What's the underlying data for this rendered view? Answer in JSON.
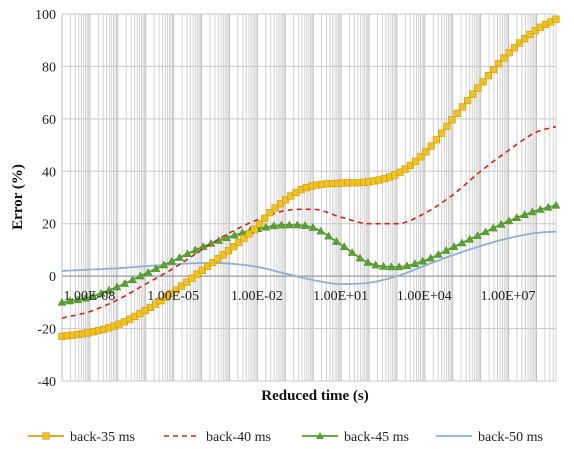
{
  "chart_data": {
    "type": "line",
    "xscale": "log",
    "xlim": [
      1e-09,
      500000000.0
    ],
    "ylim": [
      -40,
      100
    ],
    "xlabel": "Reduced time (s)",
    "ylabel": "Error (%)",
    "x_tick_labels": [
      "1.00E-08",
      "1.00E-05",
      "1.00E-02",
      "1.00E+01",
      "1.00E+04",
      "1.00E+07"
    ],
    "x_tick_values": [
      1e-08,
      1e-05,
      0.01,
      10.0,
      10000.0,
      10000000.0
    ],
    "y_ticks": [
      -40,
      -20,
      0,
      20,
      40,
      60,
      80,
      100
    ],
    "grid": {
      "x_major_and_minor": true,
      "y_major": true
    },
    "legend_position": "bottom",
    "series": [
      {
        "name": "back-35 ms",
        "color": "#d4a017",
        "line_style": "solid",
        "marker": "square",
        "points": [
          [
            1e-09,
            -23.0
          ],
          [
            1e-08,
            -21.5
          ],
          [
            1e-07,
            -18.5
          ],
          [
            1e-06,
            -13.0
          ],
          [
            1e-05,
            -6.0
          ],
          [
            0.0001,
            2.0
          ],
          [
            0.001,
            10.0
          ],
          [
            0.01,
            19.0
          ],
          [
            0.03,
            24.5
          ],
          [
            0.1,
            29.0
          ],
          [
            0.3,
            32.5
          ],
          [
            1,
            34.5
          ],
          [
            10.0,
            35.5
          ],
          [
            100.0,
            36.0
          ],
          [
            1000.0,
            39.0
          ],
          [
            10000.0,
            47.0
          ],
          [
            100000.0,
            60.0
          ],
          [
            1000000.0,
            73.0
          ],
          [
            10000000.0,
            85.0
          ],
          [
            100000000.0,
            94.0
          ],
          [
            500000000.0,
            98.0
          ]
        ]
      },
      {
        "name": "back-40 ms",
        "color": "#d62020",
        "line_style": "dashed",
        "marker": "none",
        "points": [
          [
            1e-09,
            -16.0
          ],
          [
            1e-08,
            -13.5
          ],
          [
            1e-07,
            -9.0
          ],
          [
            1e-06,
            -3.0
          ],
          [
            1e-05,
            3.0
          ],
          [
            0.0001,
            10.0
          ],
          [
            0.001,
            16.5
          ],
          [
            0.01,
            21.5
          ],
          [
            0.1,
            25.0
          ],
          [
            1,
            25.5
          ],
          [
            10.0,
            22.5
          ],
          [
            100.0,
            20.0
          ],
          [
            1000.0,
            20.0
          ],
          [
            10000.0,
            24.0
          ],
          [
            100000.0,
            31.0
          ],
          [
            1000000.0,
            40.0
          ],
          [
            10000000.0,
            48.0
          ],
          [
            100000000.0,
            55.0
          ],
          [
            500000000.0,
            57.0
          ]
        ]
      },
      {
        "name": "back-45 ms",
        "color": "#5aa132",
        "line_style": "solid",
        "marker": "triangle",
        "points": [
          [
            1e-09,
            -10.0
          ],
          [
            1e-08,
            -8.0
          ],
          [
            1e-07,
            -4.0
          ],
          [
            1e-06,
            1.0
          ],
          [
            1e-05,
            6.0
          ],
          [
            0.0001,
            11.0
          ],
          [
            0.001,
            15.0
          ],
          [
            0.01,
            18.0
          ],
          [
            0.1,
            19.5
          ],
          [
            1,
            18.5
          ],
          [
            10.0,
            12.0
          ],
          [
            100.0,
            5.0
          ],
          [
            1000.0,
            3.5
          ],
          [
            10000.0,
            6.0
          ],
          [
            100000.0,
            11.0
          ],
          [
            1000000.0,
            16.0
          ],
          [
            10000000.0,
            21.0
          ],
          [
            100000000.0,
            25.0
          ],
          [
            500000000.0,
            27.0
          ]
        ]
      },
      {
        "name": "back-50 ms",
        "color": "#8fafd4",
        "line_style": "solid",
        "marker": "none",
        "points": [
          [
            1e-09,
            2.0
          ],
          [
            1e-08,
            2.5
          ],
          [
            1e-07,
            3.0
          ],
          [
            1e-06,
            3.8
          ],
          [
            1e-05,
            4.5
          ],
          [
            0.0001,
            5.0
          ],
          [
            0.001,
            4.8
          ],
          [
            0.01,
            3.5
          ],
          [
            0.1,
            1.0
          ],
          [
            1,
            -1.5
          ],
          [
            10.0,
            -3.0
          ],
          [
            100.0,
            -2.5
          ],
          [
            1000.0,
            0.0
          ],
          [
            10000.0,
            4.0
          ],
          [
            100000.0,
            8.0
          ],
          [
            1000000.0,
            11.5
          ],
          [
            10000000.0,
            14.5
          ],
          [
            100000000.0,
            16.5
          ],
          [
            500000000.0,
            17.0
          ]
        ]
      }
    ]
  }
}
